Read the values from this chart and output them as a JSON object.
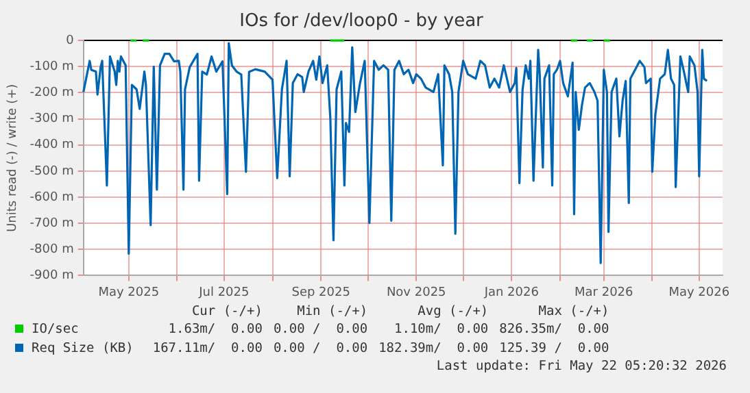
{
  "chart_data": {
    "type": "line",
    "title": "IOs for /dev/loop0 - by year",
    "ylabel": "Units read (-) / write (+)",
    "xlim": [
      "2025-04-02",
      "2026-05-16"
    ],
    "xticks": [
      {
        "value": "2025-05-01",
        "label": "May 2025"
      },
      {
        "value": "2025-06-01",
        "label": null
      },
      {
        "value": "2025-07-01",
        "label": "Jul 2025"
      },
      {
        "value": "2025-08-01",
        "label": null
      },
      {
        "value": "2025-09-01",
        "label": "Sep 2025"
      },
      {
        "value": "2025-10-01",
        "label": null
      },
      {
        "value": "2025-11-01",
        "label": "Nov 2025"
      },
      {
        "value": "2025-12-01",
        "label": null
      },
      {
        "value": "2026-01-01",
        "label": "Jan 2026"
      },
      {
        "value": "2026-02-01",
        "label": null
      },
      {
        "value": "2026-03-01",
        "label": "Mar 2026"
      },
      {
        "value": "2026-04-01",
        "label": null
      },
      {
        "value": "2026-05-01",
        "label": "May 2026"
      }
    ],
    "ylim": [
      -900,
      0
    ],
    "yticks": [
      {
        "value": -900,
        "label": "-900 m"
      },
      {
        "value": -800,
        "label": "-800 m"
      },
      {
        "value": -700,
        "label": "-700 m"
      },
      {
        "value": -600,
        "label": "-600 m"
      },
      {
        "value": -500,
        "label": "-500 m"
      },
      {
        "value": -400,
        "label": "-400 m"
      },
      {
        "value": -300,
        "label": "-300 m"
      },
      {
        "value": -200,
        "label": "-200 m"
      },
      {
        "value": -100,
        "label": "-100 m"
      },
      0
    ],
    "grid": true,
    "legend": "bottom",
    "series": [
      {
        "name": "IO/sec",
        "color": "#00cc00",
        "x": [
          "2025-05-02",
          "2025-05-06",
          "2025-05-08",
          "2025-05-10",
          "2025-05-14",
          "2025-06-01",
          "2025-09-07",
          "2025-09-16",
          "2025-10-01",
          "2026-02-08",
          "2026-02-12",
          "2026-02-15",
          "2026-02-18",
          "2026-02-22",
          "2026-02-25",
          "2026-03-01",
          "2026-03-05"
        ],
        "values": [
          0,
          0,
          null,
          0,
          0,
          null,
          0,
          0,
          null,
          0,
          0,
          null,
          0,
          0,
          null,
          0,
          0
        ]
      },
      {
        "name": "Req Size (KB)",
        "color": "#0066b3",
        "x": [
          "2025-04-02",
          "2025-04-06",
          "2025-04-07",
          "2025-04-10",
          "2025-04-11",
          "2025-04-13",
          "2025-04-14",
          "2025-04-17",
          "2025-04-19",
          "2025-04-22",
          "2025-04-23",
          "2025-04-24",
          "2025-04-25",
          "2025-04-26",
          "2025-04-29",
          "2025-05-01",
          "2025-05-03",
          "2025-05-06",
          "2025-05-08",
          "2025-05-11",
          "2025-05-12",
          "2025-05-15",
          "2025-05-17",
          "2025-05-19",
          "2025-05-21",
          "2025-05-24",
          "2025-05-27",
          "2025-05-30",
          "2025-06-02",
          "2025-06-03",
          "2025-06-05",
          "2025-06-06",
          "2025-06-09",
          "2025-06-14",
          "2025-06-15",
          "2025-06-17",
          "2025-06-20",
          "2025-06-23",
          "2025-06-26",
          "2025-06-30",
          "2025-07-03",
          "2025-07-04",
          "2025-07-06",
          "2025-07-09",
          "2025-07-12",
          "2025-07-15",
          "2025-07-17",
          "2025-07-21",
          "2025-07-27",
          "2025-08-01",
          "2025-08-04",
          "2025-08-07",
          "2025-08-10",
          "2025-08-12",
          "2025-08-14",
          "2025-08-17",
          "2025-08-20",
          "2025-08-21",
          "2025-08-24",
          "2025-08-27",
          "2025-08-29",
          "2025-08-31",
          "2025-09-02",
          "2025-09-05",
          "2025-09-07",
          "2025-09-09",
          "2025-09-11",
          "2025-09-14",
          "2025-09-16",
          "2025-09-17",
          "2025-09-19",
          "2025-09-21",
          "2025-09-23",
          "2025-09-26",
          "2025-09-29",
          "2025-10-02",
          "2025-10-05",
          "2025-10-08",
          "2025-10-11",
          "2025-10-14",
          "2025-10-16",
          "2025-10-18",
          "2025-10-21",
          "2025-10-24",
          "2025-10-27",
          "2025-10-30",
          "2025-11-01",
          "2025-11-04",
          "2025-11-07",
          "2025-11-12",
          "2025-11-15",
          "2025-11-18",
          "2025-11-19",
          "2025-11-22",
          "2025-11-24",
          "2025-11-26",
          "2025-11-28",
          "2025-12-01",
          "2025-12-04",
          "2025-12-09",
          "2025-12-12",
          "2025-12-15",
          "2025-12-18",
          "2025-12-21",
          "2025-12-24",
          "2025-12-27",
          "2025-12-31",
          "2026-01-03",
          "2026-01-04",
          "2026-01-06",
          "2026-01-08",
          "2026-01-10",
          "2026-01-12",
          "2026-01-13",
          "2026-01-15",
          "2026-01-18",
          "2026-01-19",
          "2026-01-21",
          "2026-01-22",
          "2026-01-25",
          "2026-01-27",
          "2026-01-28",
          "2026-01-30",
          "2026-02-01",
          "2026-02-03",
          "2026-02-06",
          "2026-02-09",
          "2026-02-10",
          "2026-02-11",
          "2026-02-13",
          "2026-02-15",
          "2026-02-17",
          "2026-02-20",
          "2026-02-23",
          "2026-02-25",
          "2026-02-27",
          "2026-03-01",
          "2026-03-03",
          "2026-03-04",
          "2026-03-06",
          "2026-03-09",
          "2026-03-11",
          "2026-03-13",
          "2026-03-15",
          "2026-03-17",
          "2026-03-18",
          "2026-03-21",
          "2026-03-24",
          "2026-03-27",
          "2026-03-28",
          "2026-03-31",
          "2026-04-01",
          "2026-04-03",
          "2026-04-06",
          "2026-04-09",
          "2026-04-11",
          "2026-04-13",
          "2026-04-15",
          "2026-04-16",
          "2026-04-19",
          "2026-04-21",
          "2026-04-24",
          "2026-04-25",
          "2026-04-28",
          "2026-04-30",
          "2026-05-01",
          "2026-05-03",
          "2026-05-04",
          "2026-05-06"
        ],
        "values": [
          -197,
          -78,
          -112,
          -119,
          -207,
          -102,
          -78,
          -555,
          -61,
          -119,
          -170,
          -78,
          -119,
          -61,
          -95,
          -816,
          -170,
          -187,
          -262,
          -119,
          -170,
          -707,
          -100,
          -571,
          -95,
          -51,
          -51,
          -80,
          -78,
          -119,
          -571,
          -187,
          -102,
          -51,
          -537,
          -119,
          -130,
          -61,
          -119,
          -80,
          -588,
          -10,
          -95,
          -119,
          -130,
          -503,
          -120,
          -110,
          -119,
          -150,
          -527,
          -187,
          -78,
          -520,
          -163,
          -129,
          -140,
          -197,
          -119,
          -78,
          -150,
          -61,
          -163,
          -95,
          -299,
          -765,
          -187,
          -119,
          -555,
          -316,
          -350,
          -26,
          -274,
          -163,
          -78,
          -699,
          -78,
          -112,
          -95,
          -112,
          -690,
          -112,
          -78,
          -129,
          -112,
          -163,
          -129,
          -146,
          -180,
          -197,
          -129,
          -478,
          -95,
          -129,
          -197,
          -740,
          -197,
          -78,
          -129,
          -146,
          -78,
          -95,
          -180,
          -146,
          -180,
          -95,
          -197,
          -163,
          -105,
          -546,
          -189,
          -95,
          -146,
          -78,
          -537,
          -36,
          -129,
          -486,
          -146,
          -95,
          -555,
          -129,
          -112,
          -78,
          -163,
          -214,
          -85,
          -665,
          -197,
          -342,
          -248,
          -180,
          -163,
          -197,
          -231,
          -852,
          -112,
          -197,
          -733,
          -197,
          -146,
          -367,
          -231,
          -155,
          -622,
          -146,
          -112,
          -78,
          -102,
          -163,
          -146,
          -503,
          -282,
          -146,
          -129,
          -36,
          -146,
          -170,
          -561,
          -61,
          -112,
          -197,
          -61,
          -95,
          -197,
          -520,
          -36,
          -146,
          -155
        ]
      }
    ],
    "annotations": [
      "Cur (-/+)",
      "Min (-/+)",
      "Avg (-/+)",
      "Max (-/+)",
      "1.63m/  0.00",
      "0.00 /  0.00",
      "1.10m/  0.00",
      "826.35m/  0.00",
      "167.11m/  0.00",
      "0.00 /  0.00",
      "182.39m/  0.00",
      "125.39 /  0.00",
      "Last update: Fri May 22 05:20:32 2026"
    ]
  }
}
